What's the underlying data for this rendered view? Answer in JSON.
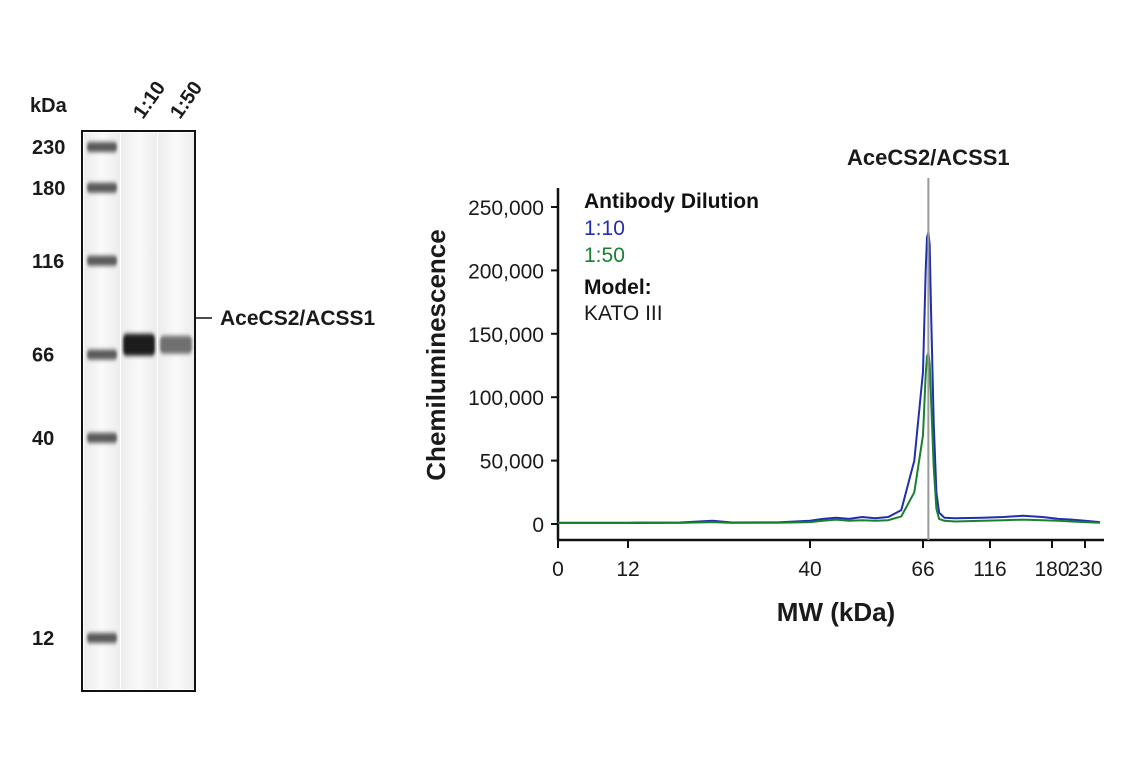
{
  "blot": {
    "unit_label": "kDa",
    "lane_labels": [
      "1:10",
      "1:50"
    ],
    "ladder": [
      230,
      180,
      116,
      66,
      40,
      12
    ],
    "ladder_labels": [
      "230",
      "180",
      "116",
      "66",
      "40",
      "12"
    ],
    "band_label": "AceCS2/ACSS1",
    "band_mw": 70,
    "band_intensity": [
      1.0,
      0.6
    ]
  },
  "chart_data": {
    "type": "line",
    "title": "",
    "xlabel": "MW (kDa)",
    "ylabel": "Chemiluminescence",
    "x_ticks": [
      0,
      12,
      40,
      66,
      116,
      180,
      230
    ],
    "x_tick_labels": [
      "0",
      "12",
      "40",
      "66",
      "116",
      "180",
      "230"
    ],
    "y_ticks": [
      0,
      50000,
      100000,
      150000,
      200000,
      250000
    ],
    "y_tick_labels": [
      "0",
      "50,000",
      "100,000",
      "150,000",
      "200,000",
      "250,000"
    ],
    "ylim": [
      0,
      250000
    ],
    "grid": false,
    "legend_placement": "top-left",
    "marker_label": "AceCS2/ACSS1",
    "marker_x": 70,
    "legend": {
      "title": "Antibody Dilution",
      "model_title": "Model:",
      "model_value": "KATO III"
    },
    "series": [
      {
        "name": "1:10",
        "color": "#1f2fb0",
        "points": [
          [
            0,
            1000
          ],
          [
            12,
            1000
          ],
          [
            20,
            1200
          ],
          [
            25,
            2500
          ],
          [
            28,
            1200
          ],
          [
            35,
            1300
          ],
          [
            40,
            2500
          ],
          [
            43,
            4000
          ],
          [
            46,
            5000
          ],
          [
            49,
            4000
          ],
          [
            52,
            5500
          ],
          [
            55,
            4500
          ],
          [
            58,
            5500
          ],
          [
            61,
            11000
          ],
          [
            64,
            50000
          ],
          [
            66,
            120000
          ],
          [
            68,
            200000
          ],
          [
            69,
            226000
          ],
          [
            70,
            230000
          ],
          [
            71,
            220000
          ],
          [
            72,
            170000
          ],
          [
            74,
            80000
          ],
          [
            76,
            25000
          ],
          [
            78,
            9000
          ],
          [
            82,
            5000
          ],
          [
            90,
            4500
          ],
          [
            110,
            5000
          ],
          [
            130,
            5500
          ],
          [
            150,
            6500
          ],
          [
            170,
            5500
          ],
          [
            190,
            4000
          ],
          [
            210,
            3500
          ],
          [
            230,
            2500
          ],
          [
            245,
            1500
          ]
        ]
      },
      {
        "name": "1:50",
        "color": "#1a7f2f",
        "points": [
          [
            0,
            800
          ],
          [
            12,
            800
          ],
          [
            20,
            900
          ],
          [
            25,
            1500
          ],
          [
            28,
            900
          ],
          [
            35,
            1000
          ],
          [
            40,
            1500
          ],
          [
            43,
            2500
          ],
          [
            46,
            3500
          ],
          [
            49,
            2500
          ],
          [
            52,
            3000
          ],
          [
            55,
            2500
          ],
          [
            58,
            3000
          ],
          [
            61,
            6000
          ],
          [
            64,
            25000
          ],
          [
            66,
            70000
          ],
          [
            68,
            118000
          ],
          [
            69,
            132000
          ],
          [
            70,
            135000
          ],
          [
            71,
            126000
          ],
          [
            72,
            100000
          ],
          [
            74,
            45000
          ],
          [
            76,
            12000
          ],
          [
            78,
            4000
          ],
          [
            82,
            2500
          ],
          [
            90,
            2000
          ],
          [
            110,
            2500
          ],
          [
            130,
            3000
          ],
          [
            150,
            3500
          ],
          [
            170,
            3000
          ],
          [
            190,
            2500
          ],
          [
            210,
            2000
          ],
          [
            230,
            1500
          ],
          [
            245,
            1000
          ]
        ]
      }
    ]
  }
}
